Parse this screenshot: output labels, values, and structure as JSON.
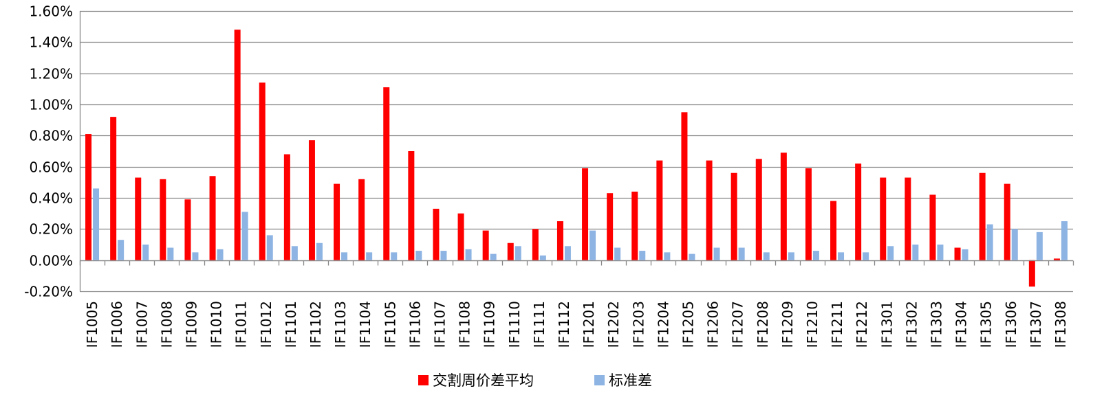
{
  "chart_data": {
    "type": "bar",
    "categories": [
      "IF1005",
      "IF1006",
      "IF1007",
      "IF1008",
      "IF1009",
      "IF1010",
      "IF1011",
      "IF1012",
      "IF1101",
      "IF1102",
      "IF1103",
      "IF1104",
      "IF1105",
      "IF1106",
      "IF1107",
      "IF1108",
      "IF1109",
      "IF1110",
      "IF1111",
      "IF1112",
      "IF1201",
      "IF1202",
      "IF1203",
      "IF1204",
      "IF1205",
      "IF1206",
      "IF1207",
      "IF1208",
      "IF1209",
      "IF1210",
      "IF1211",
      "IF1212",
      "IF1301",
      "IF1302",
      "IF1303",
      "IF1304",
      "IF1305",
      "IF1306",
      "IF1307",
      "IF1308"
    ],
    "series": [
      {
        "name": "交割周价差平均",
        "color": "#FF0000",
        "values": [
          0.81,
          0.92,
          0.53,
          0.52,
          0.39,
          0.54,
          1.48,
          1.14,
          0.68,
          0.77,
          0.49,
          0.52,
          1.11,
          0.7,
          0.33,
          0.3,
          0.19,
          0.11,
          0.2,
          0.25,
          0.59,
          0.43,
          0.44,
          0.64,
          0.95,
          0.64,
          0.56,
          0.65,
          0.69,
          0.59,
          0.38,
          0.62,
          0.53,
          0.53,
          0.42,
          0.08,
          0.56,
          0.49,
          -0.17,
          0.01
        ]
      },
      {
        "name": "标准差",
        "color": "#8EB4E3",
        "values": [
          0.46,
          0.13,
          0.1,
          0.08,
          0.05,
          0.07,
          0.31,
          0.16,
          0.09,
          0.11,
          0.05,
          0.05,
          0.05,
          0.06,
          0.06,
          0.07,
          0.04,
          0.09,
          0.03,
          0.09,
          0.19,
          0.08,
          0.06,
          0.05,
          0.04,
          0.08,
          0.08,
          0.05,
          0.05,
          0.06,
          0.05,
          0.05,
          0.09,
          0.1,
          0.1,
          0.07,
          0.23,
          0.2,
          0.18,
          0.25
        ]
      }
    ],
    "y_unit": "%",
    "ylim": [
      -0.2,
      1.6
    ],
    "yticks": [
      -0.2,
      0.0,
      0.2,
      0.4,
      0.6,
      0.8,
      1.0,
      1.2,
      1.4,
      1.6
    ],
    "ytick_labels": [
      "-0.20%",
      "0.00%",
      "0.20%",
      "0.40%",
      "0.60%",
      "0.80%",
      "1.00%",
      "1.20%",
      "1.40%",
      "1.60%"
    ],
    "grid": true,
    "legend_position": "bottom-center",
    "title": "",
    "xlabel": "",
    "ylabel": ""
  }
}
